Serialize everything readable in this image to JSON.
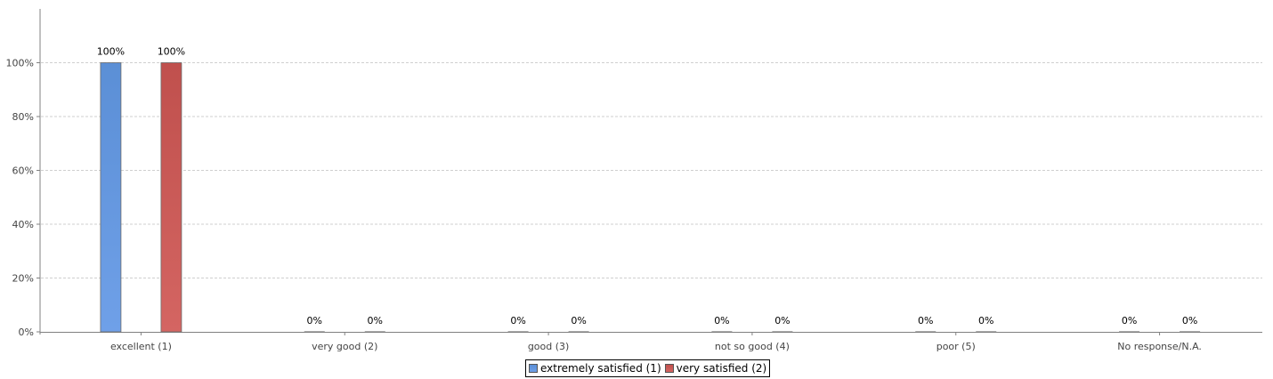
{
  "chart_data": {
    "type": "bar",
    "title": "",
    "xlabel": "",
    "ylabel": "",
    "categories": [
      "excellent (1)",
      "very good (2)",
      "good (3)",
      "not so good (4)",
      "poor (5)",
      "No response/N.A."
    ],
    "series": [
      {
        "name": "extremely satisfied (1)",
        "values": [
          100,
          0,
          0,
          0,
          0,
          0
        ],
        "color": "#5b8fd6",
        "color_light": "#6fa0e8"
      },
      {
        "name": "very satisfied (2)",
        "values": [
          100,
          0,
          0,
          0,
          0,
          0
        ],
        "color": "#c0504d",
        "color_light": "#d46562"
      }
    ],
    "value_label_suffix": "%",
    "ylim": [
      0,
      120
    ],
    "yticks": [
      "0%",
      "20%",
      "40%",
      "60%",
      "80%",
      "100%"
    ],
    "ytick_values": [
      0,
      20,
      40,
      60,
      80,
      100
    ],
    "grid": true,
    "legend_position": "bottom-center"
  }
}
